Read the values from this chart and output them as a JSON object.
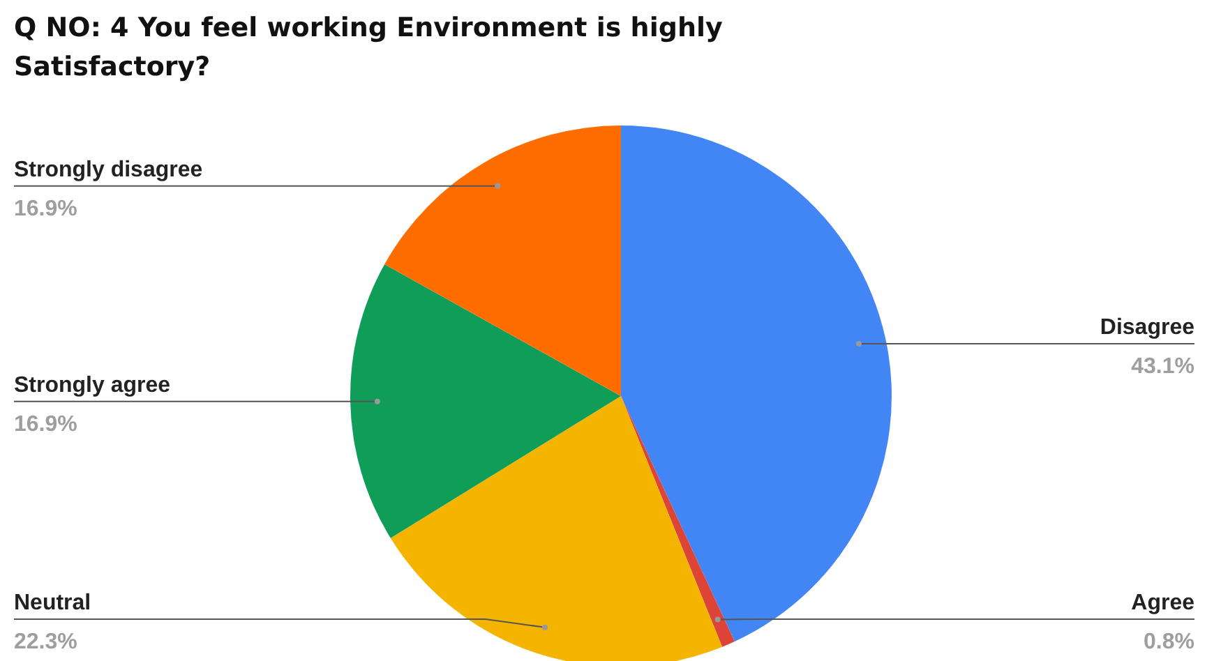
{
  "chart_data": {
    "type": "pie",
    "title": "Q NO: 4  You feel working Environment is highly Satisfactory?",
    "categories": [
      "Disagree",
      "Agree",
      "Neutral",
      "Strongly agree",
      "Strongly disagree"
    ],
    "values": [
      43.1,
      0.8,
      22.3,
      16.9,
      16.9
    ],
    "colors": [
      "#4285f4",
      "#db4437",
      "#f4b400",
      "#0f9d58",
      "#ff6d00"
    ],
    "value_labels": [
      "43.1%",
      "0.8%",
      "22.3%",
      "16.9%",
      "16.9%"
    ],
    "legend": false
  }
}
